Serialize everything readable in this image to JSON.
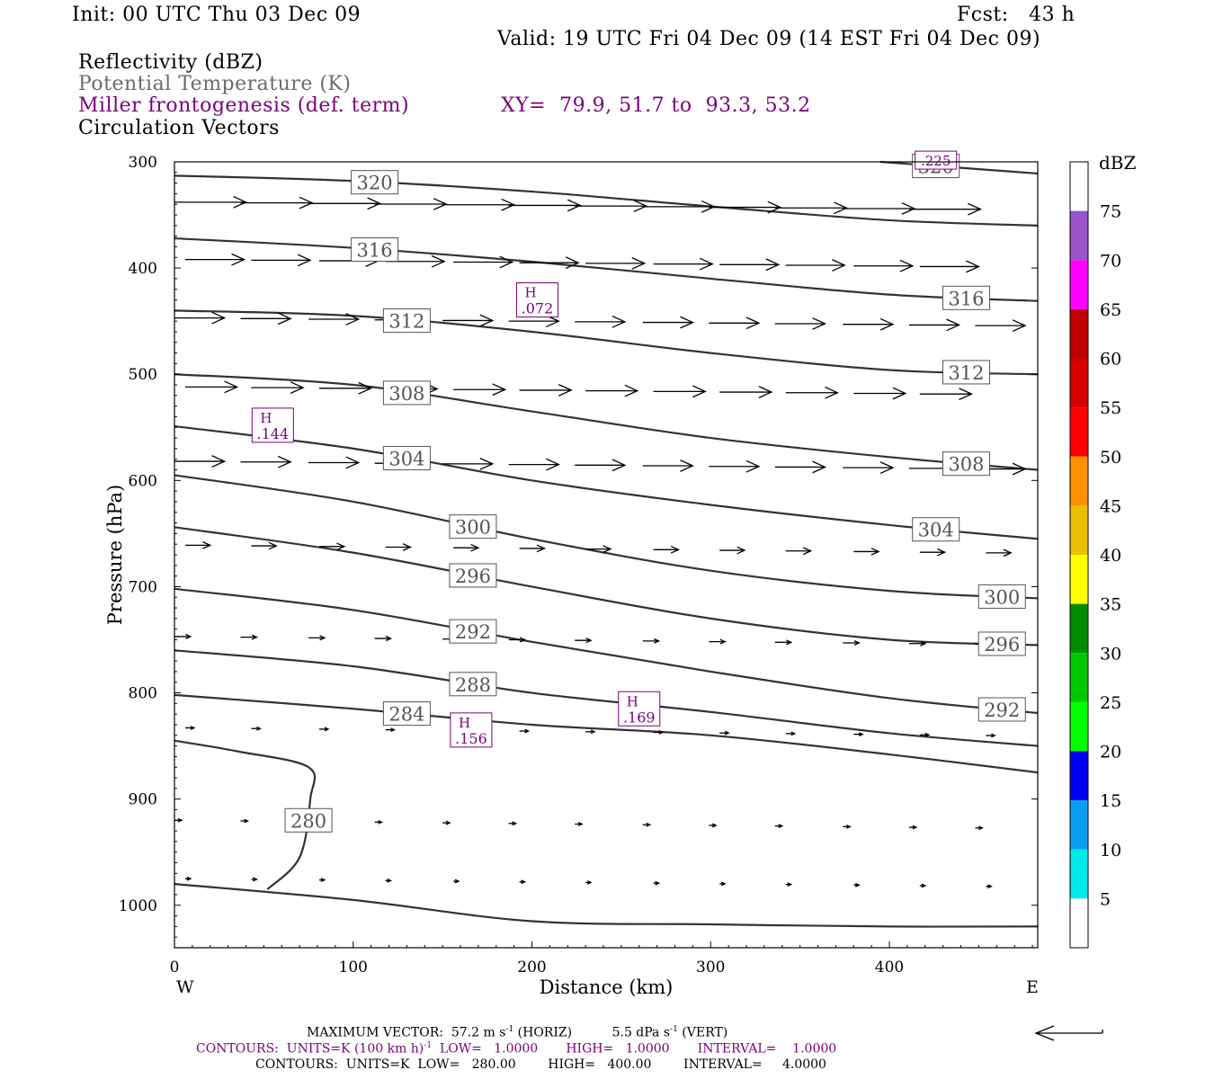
{
  "header": {
    "init": "Init: 00 UTC Thu 03 Dec 09",
    "fcst": "Fcst:   43 h",
    "valid": "Valid: 19 UTC Fri 04 Dec 09 (14 EST Fri 04 Dec 09)",
    "field1": "Reflectivity (dBZ)",
    "field2": "Potential Temperature (K)",
    "field3": "Miller frontogenesis (def. term)",
    "xy": "XY=  79.9, 51.7 to  93.3, 53.2",
    "field4": "Circulation Vectors"
  },
  "footer": {
    "max_vector_a": "MAXIMUM VECTOR:  57.2 m s",
    "max_vector_b": "(HORIZ)",
    "max_vector_c": "5.5 dPa s",
    "max_vector_d": "(VERT)",
    "exp": "-1",
    "contours1_a": "CONTOURS:  UNITS=K (100 km h)",
    "contours1_b": "LOW=   1.0000       HIGH=   1.0000       INTERVAL=    1.0000",
    "contours2": "CONTOURS:  UNITS=K  LOW=   280.00        HIGH=   400.00        INTERVAL=     4.0000"
  },
  "chart_data": {
    "type": "cross-section",
    "xlabel": "Distance (km)",
    "ylabel": "Pressure (hPa)",
    "x_ticks": [
      0,
      100,
      200,
      300,
      400
    ],
    "y_ticks": [
      300,
      400,
      500,
      600,
      700,
      800,
      900,
      1000
    ],
    "xlim": [
      0,
      483
    ],
    "ylim": [
      1040,
      300
    ],
    "x_end_labels": {
      "left": "W",
      "right": "E"
    },
    "colorbar": {
      "unit": "dBZ",
      "labels": [
        "5",
        "10",
        "15",
        "20",
        "25",
        "30",
        "35",
        "40",
        "45",
        "50",
        "55",
        "60",
        "65",
        "70",
        "75"
      ],
      "colors": [
        "#ffffff",
        "#00e8e8",
        "#0a9ef0",
        "#0000f0",
        "#00ff00",
        "#00c800",
        "#008c00",
        "#ffff00",
        "#e8c000",
        "#ff9000",
        "#ff0000",
        "#d60000",
        "#c00000",
        "#ff00ff",
        "#9955c9",
        "#ffffff"
      ]
    },
    "theta_contours": [
      {
        "label": "320",
        "x": [
          0,
          100,
          200,
          300,
          400,
          483
        ],
        "p": [
          313,
          318,
          328,
          342,
          355,
          360
        ]
      },
      {
        "label": "320",
        "x": [
          395,
          483
        ],
        "p": [
          300,
          311
        ]
      },
      {
        "label": "316",
        "x": [
          0,
          100,
          200,
          300,
          400,
          483
        ],
        "p": [
          372,
          381,
          394,
          410,
          425,
          431
        ]
      },
      {
        "label": "312",
        "x": [
          0,
          100,
          200,
          300,
          400,
          483
        ],
        "p": [
          440,
          445,
          460,
          480,
          496,
          500
        ]
      },
      {
        "label": "308",
        "x": [
          0,
          100,
          200,
          300,
          400,
          483
        ],
        "p": [
          500,
          510,
          535,
          560,
          578,
          590
        ]
      },
      {
        "label": "304",
        "x": [
          0,
          100,
          200,
          300,
          400,
          483
        ],
        "p": [
          549,
          570,
          600,
          623,
          642,
          655
        ]
      },
      {
        "label": "300",
        "x": [
          0,
          100,
          200,
          300,
          400,
          483
        ],
        "p": [
          595,
          620,
          655,
          685,
          704,
          711
        ]
      },
      {
        "label": "296",
        "x": [
          0,
          100,
          200,
          300,
          400,
          483
        ],
        "p": [
          644,
          668,
          700,
          730,
          750,
          755
        ]
      },
      {
        "label": "292",
        "x": [
          0,
          100,
          200,
          300,
          400,
          483
        ],
        "p": [
          702,
          722,
          752,
          780,
          805,
          819
        ]
      },
      {
        "label": "288",
        "x": [
          0,
          100,
          200,
          300,
          400,
          483
        ],
        "p": [
          760,
          775,
          800,
          818,
          838,
          850
        ]
      },
      {
        "label": "284",
        "x": [
          0,
          100,
          200,
          300,
          400,
          483
        ],
        "p": [
          802,
          815,
          830,
          840,
          858,
          875
        ]
      },
      {
        "label": "280",
        "x": [
          0,
          35,
          75,
          76,
          70,
          52
        ],
        "p": [
          845,
          855,
          870,
          900,
          955,
          985
        ]
      },
      {
        "label": "",
        "x": [
          0,
          100,
          200,
          300,
          400,
          483
        ],
        "p": [
          980,
          995,
          1015,
          1018,
          1020,
          1020
        ]
      }
    ],
    "contour_label_text": [
      "320",
      "320",
      "316",
      "316",
      "312",
      "312",
      "308",
      "308",
      "304",
      "304",
      "300",
      "300",
      "296",
      "296",
      "292",
      "292",
      "288",
      "284",
      "280"
    ],
    "frontogenesis_maxima": [
      {
        "mark": "H",
        "value": ".072",
        "x": 203,
        "p": 430
      },
      {
        "mark": "H",
        "value": ".144",
        "x": 55,
        "p": 548
      },
      {
        "mark": "H",
        "value": ".156",
        "x": 166,
        "p": 835
      },
      {
        "mark": "H",
        "value": ".169",
        "x": 260,
        "p": 815
      },
      {
        "mark": "",
        "value": ".225",
        "x": 426,
        "p": 306
      }
    ],
    "vector_levels_hPa": [
      338,
      392,
      447,
      512,
      582,
      661,
      747,
      833,
      920,
      975
    ],
    "vector_x_km": [
      0,
      37,
      75,
      112,
      150,
      187,
      224,
      262,
      299,
      336,
      374,
      411,
      448
    ],
    "vector_length_km": [
      40,
      33,
      28,
      29,
      28,
      14,
      9,
      5,
      4,
      3
    ]
  }
}
